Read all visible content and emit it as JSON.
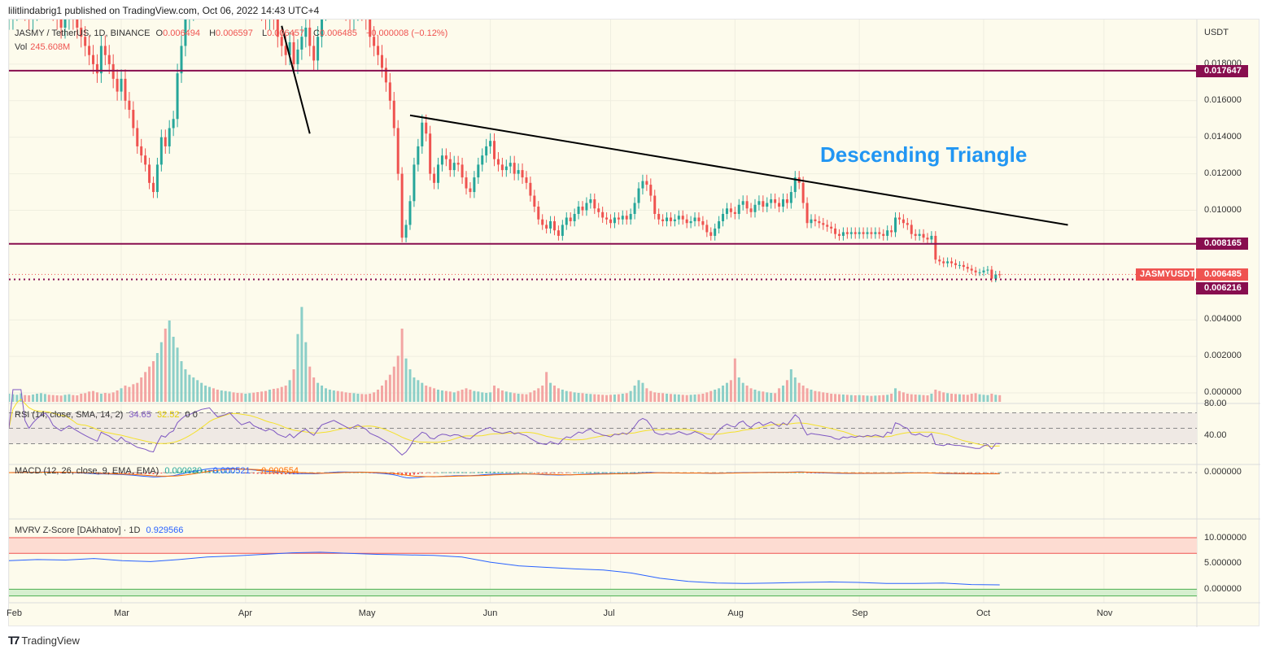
{
  "published": "lilitlindabrig1 published on TradingView.com, Oct 06, 2022 14:43 UTC+4",
  "legend": {
    "symbol": "JASMY / TetherUS, 1D, BINANCE",
    "o_label": "O",
    "o": "0.006494",
    "h_label": "H",
    "h": "0.006597",
    "l_label": "L",
    "l": "0.006457",
    "c_label": "C",
    "c": "0.006485",
    "change": "−0.000008 (−0.12%)",
    "vol_label": "Vol",
    "vol": "245.608M"
  },
  "annotation": "Descending Triangle",
  "price_axis": {
    "unit": "USDT",
    "ticks": [
      "0.018000",
      "0.016000",
      "0.014000",
      "0.012000",
      "0.010000",
      "0.004000",
      "0.002000",
      "0.000000"
    ],
    "tick_values": [
      0.018,
      0.016,
      0.014,
      0.012,
      0.01,
      0.004,
      0.002,
      0
    ]
  },
  "levels": {
    "resistance": "0.017647",
    "support": "0.008165",
    "low": "0.006216",
    "last": "0.006485",
    "symbol_badge": "JASMYUSDT"
  },
  "trendlines": [
    {
      "from": [
        "2022-05-12",
        0.0152
      ],
      "to": [
        "2022-10-23",
        0.0092
      ]
    },
    {
      "from": [
        "2022-04-10",
        0.0201
      ],
      "to": [
        "2022-04-17",
        0.0142
      ]
    }
  ],
  "rsi": {
    "label": "RSI (14, close, SMA, 14, 2)",
    "value": "34.65",
    "sma": "32.52",
    "extra": "0  0",
    "ticks": [
      "80.00",
      "40.00"
    ]
  },
  "macd": {
    "label": "MACD (12, 26, close, 9, EMA, EMA)",
    "hist": "0.000030",
    "macd": "−0.000521",
    "signal": "−0.000554",
    "ticks": [
      "0.000000"
    ]
  },
  "mvrv": {
    "label": "MVRV Z-Score [DAkhatov] · 1D",
    "value": "0.929566",
    "ticks": [
      "10.000000",
      "5.000000",
      "0.000000"
    ],
    "weekly": [
      5.6,
      5.8,
      5.7,
      6.0,
      5.6,
      5.4,
      5.8,
      6.3,
      6.5,
      6.8,
      7.1,
      7.2,
      7.0,
      6.8,
      6.7,
      6.6,
      6.3,
      5.3,
      4.6,
      4.3,
      4.0,
      3.8,
      3.2,
      2.2,
      1.6,
      1.3,
      1.2,
      1.3,
      1.4,
      1.5,
      1.4,
      1.2,
      1.2,
      1.3,
      1.0,
      0.93
    ]
  },
  "time_axis": [
    "Feb",
    "Mar",
    "Apr",
    "May",
    "Jun",
    "Jul",
    "Aug",
    "Sep",
    "Oct",
    "Nov"
  ],
  "colors": {
    "up": "#26a69a",
    "down": "#ef5350",
    "level": "#880e4f",
    "annotation": "#2196f3",
    "rsi": "#7e57c2",
    "rsi_sma": "#f5e12a",
    "macd": "#2962ff",
    "signal": "#ff6d00",
    "mvrv": "#2962ff"
  },
  "brand": "TradingView",
  "chart_data": {
    "type": "candlestick",
    "start": "2022-02-01",
    "close": [
      0.0205,
      0.021,
      0.0215,
      0.022,
      0.021,
      0.0205,
      0.021,
      0.0215,
      0.022,
      0.0225,
      0.022,
      0.021,
      0.0205,
      0.02,
      0.0205,
      0.021,
      0.0205,
      0.02,
      0.0195,
      0.019,
      0.0185,
      0.018,
      0.0175,
      0.019,
      0.0185,
      0.018,
      0.0172,
      0.0165,
      0.0172,
      0.016,
      0.0155,
      0.0145,
      0.0135,
      0.013,
      0.0125,
      0.0115,
      0.011,
      0.0125,
      0.014,
      0.0135,
      0.0145,
      0.015,
      0.0175,
      0.019,
      0.0205,
      0.021,
      0.022,
      0.023,
      0.024,
      0.0245,
      0.025,
      0.024,
      0.023,
      0.0235,
      0.024,
      0.025,
      0.024,
      0.023,
      0.022,
      0.0225,
      0.023,
      0.022,
      0.0215,
      0.021,
      0.0205,
      0.021,
      0.0205,
      0.0195,
      0.019,
      0.0185,
      0.0192,
      0.018,
      0.0188,
      0.0195,
      0.02,
      0.019,
      0.0182,
      0.0195,
      0.021,
      0.0215,
      0.022,
      0.0225,
      0.022,
      0.0215,
      0.021,
      0.0205,
      0.021,
      0.0215,
      0.021,
      0.0205,
      0.0195,
      0.019,
      0.0185,
      0.0178,
      0.017,
      0.016,
      0.0145,
      0.012,
      0.0085,
      0.0092,
      0.0105,
      0.0125,
      0.0135,
      0.0148,
      0.0142,
      0.012,
      0.0115,
      0.0125,
      0.013,
      0.0128,
      0.0122,
      0.0126,
      0.0125,
      0.0118,
      0.0112,
      0.011,
      0.0118,
      0.0125,
      0.013,
      0.0135,
      0.0138,
      0.0128,
      0.0125,
      0.0122,
      0.0124,
      0.0126,
      0.012,
      0.0122,
      0.0118,
      0.0115,
      0.0108,
      0.0102,
      0.0095,
      0.0092,
      0.009,
      0.0094,
      0.0089,
      0.0086,
      0.0092,
      0.0096,
      0.0094,
      0.0098,
      0.0102,
      0.01,
      0.0104,
      0.0106,
      0.0101,
      0.0099,
      0.0096,
      0.0095,
      0.0093,
      0.0096,
      0.0095,
      0.0097,
      0.0095,
      0.0098,
      0.0104,
      0.0112,
      0.0116,
      0.0114,
      0.0108,
      0.0098,
      0.0095,
      0.0094,
      0.0096,
      0.0094,
      0.0095,
      0.0097,
      0.0095,
      0.0093,
      0.0094,
      0.0096,
      0.0094,
      0.0092,
      0.0088,
      0.0086,
      0.009,
      0.0094,
      0.0098,
      0.0101,
      0.0099,
      0.0098,
      0.0103,
      0.0105,
      0.0101,
      0.0099,
      0.0103,
      0.0105,
      0.0102,
      0.0104,
      0.0106,
      0.0104,
      0.0102,
      0.0106,
      0.0104,
      0.011,
      0.0118,
      0.0115,
      0.0104,
      0.0093,
      0.0095,
      0.0094,
      0.0093,
      0.0092,
      0.0091,
      0.009,
      0.0087,
      0.0086,
      0.0088,
      0.0087,
      0.0088,
      0.0087,
      0.0088,
      0.0087,
      0.0088,
      0.0087,
      0.0088,
      0.0087,
      0.0086,
      0.0089,
      0.0088,
      0.0096,
      0.0095,
      0.0093,
      0.0092,
      0.0087,
      0.0086,
      0.0087,
      0.0085,
      0.0084,
      0.0086,
      0.0073,
      0.0072,
      0.0071,
      0.0072,
      0.0071,
      0.007,
      0.007,
      0.0069,
      0.0068,
      0.0067,
      0.0066,
      0.0066,
      0.0067,
      0.00675,
      0.00625,
      0.00649,
      0.006485
    ],
    "volume_M": [
      300,
      280,
      260,
      310,
      250,
      240,
      270,
      300,
      320,
      290,
      260,
      250,
      240,
      230,
      260,
      280,
      250,
      240,
      300,
      320,
      380,
      400,
      350,
      300,
      330,
      310,
      350,
      420,
      500,
      600,
      550,
      650,
      700,
      900,
      1100,
      1300,
      1500,
      1800,
      2200,
      2700,
      3000,
      2400,
      2000,
      1500,
      1200,
      1000,
      900,
      800,
      700,
      600,
      550,
      500,
      450,
      420,
      400,
      380,
      350,
      330,
      320,
      300,
      320,
      340,
      360,
      380,
      400,
      450,
      480,
      500,
      550,
      600,
      800,
      1200,
      2500,
      3500,
      2200,
      1300,
      900,
      700,
      600,
      500,
      450,
      420,
      400,
      380,
      350,
      330,
      320,
      300,
      290,
      280,
      300,
      350,
      450,
      600,
      800,
      1000,
      1300,
      1700,
      2700,
      1600,
      1200,
      900,
      800,
      700,
      600,
      550,
      500,
      450,
      420,
      400,
      380,
      350,
      400,
      450,
      500,
      450,
      400,
      380,
      350,
      330,
      350,
      600,
      500,
      420,
      380,
      350,
      320,
      300,
      290,
      280,
      350,
      420,
      500,
      600,
      1100,
      700,
      600,
      500,
      450,
      400,
      380,
      350,
      330,
      320,
      300,
      290,
      280,
      270,
      260,
      250,
      260,
      270,
      280,
      300,
      320,
      400,
      600,
      800,
      700,
      500,
      400,
      350,
      330,
      320,
      300,
      290,
      280,
      270,
      260,
      250,
      260,
      270,
      280,
      300,
      350,
      400,
      450,
      500,
      600,
      700,
      800,
      1600,
      900,
      700,
      600,
      500,
      450,
      400,
      380,
      350,
      330,
      320,
      500,
      600,
      800,
      1200,
      900,
      700,
      600,
      500,
      450,
      400,
      380,
      350,
      330,
      300,
      290,
      280,
      270,
      260,
      250,
      240,
      250,
      240,
      230,
      220,
      230,
      240,
      250,
      260,
      300,
      500,
      400,
      350,
      300,
      280,
      270,
      260,
      250,
      240,
      300,
      450,
      400,
      350,
      320,
      300,
      290,
      280,
      270,
      260,
      300,
      320,
      280,
      260,
      250,
      300,
      260,
      245.608
    ]
  }
}
